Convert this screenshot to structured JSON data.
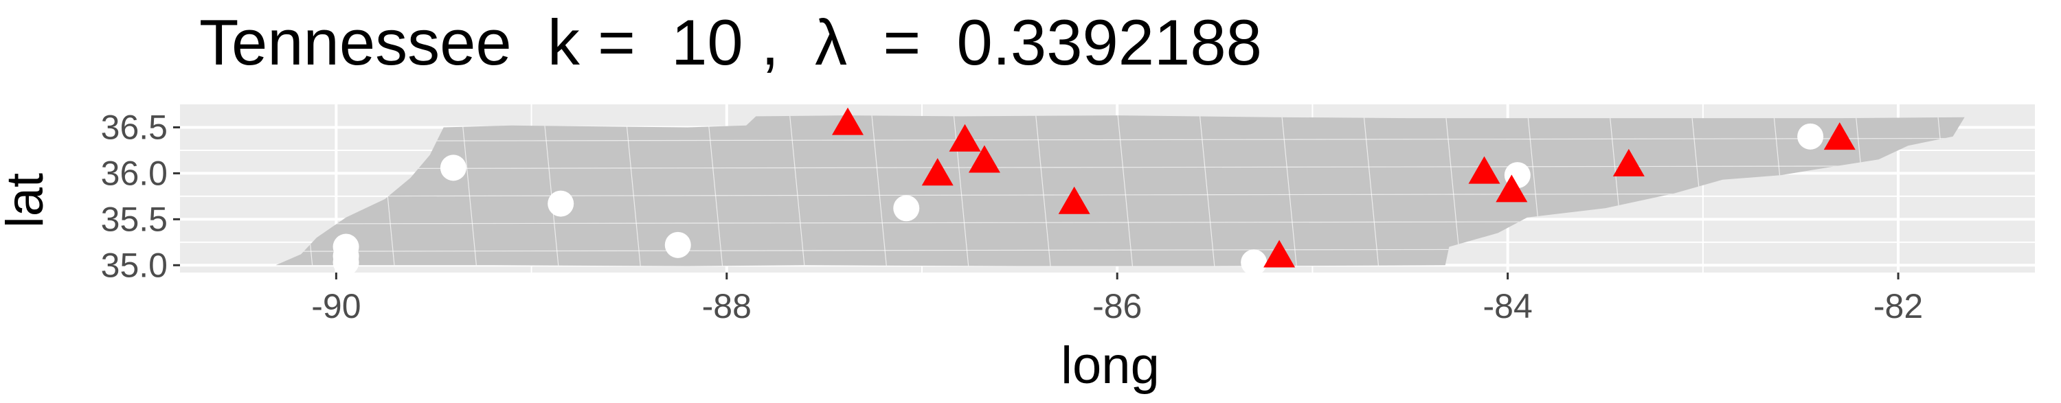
{
  "chart_data": {
    "type": "scatter",
    "title": "Tennessee  k =  10 ,  λ  =  0.3392188",
    "xlabel": "long",
    "ylabel": "lat",
    "xlim": [
      -90.8,
      -81.3
    ],
    "ylim": [
      34.92,
      36.75
    ],
    "x_ticks": [
      -90,
      -88,
      -86,
      -84,
      -82
    ],
    "x_tick_labels": [
      "-90",
      "-88",
      "-86",
      "-84",
      "-82"
    ],
    "y_ticks": [
      35.0,
      35.5,
      36.0,
      36.5
    ],
    "y_tick_labels": [
      "35.0",
      "35.5",
      "36.0",
      "36.5"
    ],
    "grid": true,
    "panel_background": "#ebebeb",
    "grid_color": "#ffffff",
    "map_fill": "#c4c4c4",
    "map_outline": "Tennessee county boundaries",
    "series": [
      {
        "marker": "circle",
        "color": "#ffffff",
        "points": [
          {
            "x": -89.4,
            "y": 36.06
          },
          {
            "x": -88.85,
            "y": 35.67
          },
          {
            "x": -89.95,
            "y": 35.2
          },
          {
            "x": -89.95,
            "y": 35.1
          },
          {
            "x": -89.95,
            "y": 35.03
          },
          {
            "x": -88.25,
            "y": 35.22
          },
          {
            "x": -87.08,
            "y": 35.62
          },
          {
            "x": -85.3,
            "y": 35.03
          },
          {
            "x": -83.95,
            "y": 35.98
          },
          {
            "x": -82.45,
            "y": 36.4
          }
        ]
      },
      {
        "marker": "triangle",
        "color": "#ff0000",
        "points": [
          {
            "x": -87.38,
            "y": 36.53
          },
          {
            "x": -86.78,
            "y": 36.35
          },
          {
            "x": -86.68,
            "y": 36.12
          },
          {
            "x": -86.92,
            "y": 35.98
          },
          {
            "x": -86.22,
            "y": 35.67
          },
          {
            "x": -85.17,
            "y": 35.09
          },
          {
            "x": -84.12,
            "y": 36.0
          },
          {
            "x": -83.98,
            "y": 35.8
          },
          {
            "x": -83.38,
            "y": 36.08
          },
          {
            "x": -82.3,
            "y": 36.37
          }
        ]
      }
    ]
  }
}
